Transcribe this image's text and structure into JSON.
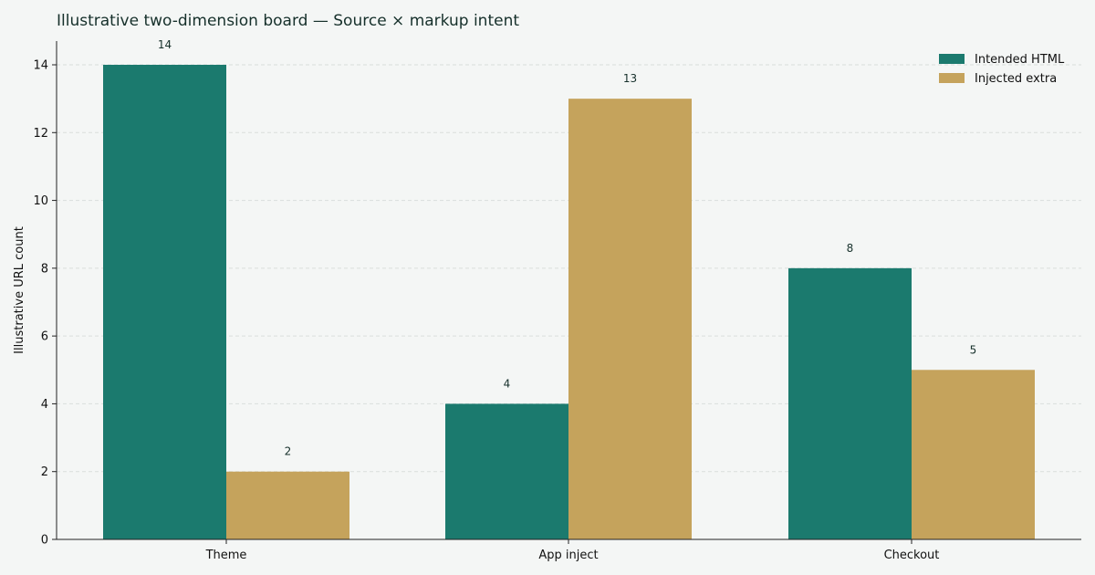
{
  "chart_data": {
    "type": "bar",
    "title": "Illustrative two-dimension board — Source × markup intent",
    "xlabel": "",
    "ylabel": "Illustrative URL count",
    "categories": [
      "Theme",
      "App inject",
      "Checkout"
    ],
    "series": [
      {
        "name": "Intended HTML",
        "values": [
          14,
          4,
          8
        ],
        "color": "#1b7a6e"
      },
      {
        "name": "Injected extra",
        "values": [
          2,
          13,
          5
        ],
        "color": "#c5a35c"
      }
    ],
    "ylim": [
      0,
      14.7
    ],
    "yticks": [
      0,
      2,
      4,
      6,
      8,
      10,
      12,
      14
    ],
    "grid": true,
    "legend_position": "top-right"
  }
}
